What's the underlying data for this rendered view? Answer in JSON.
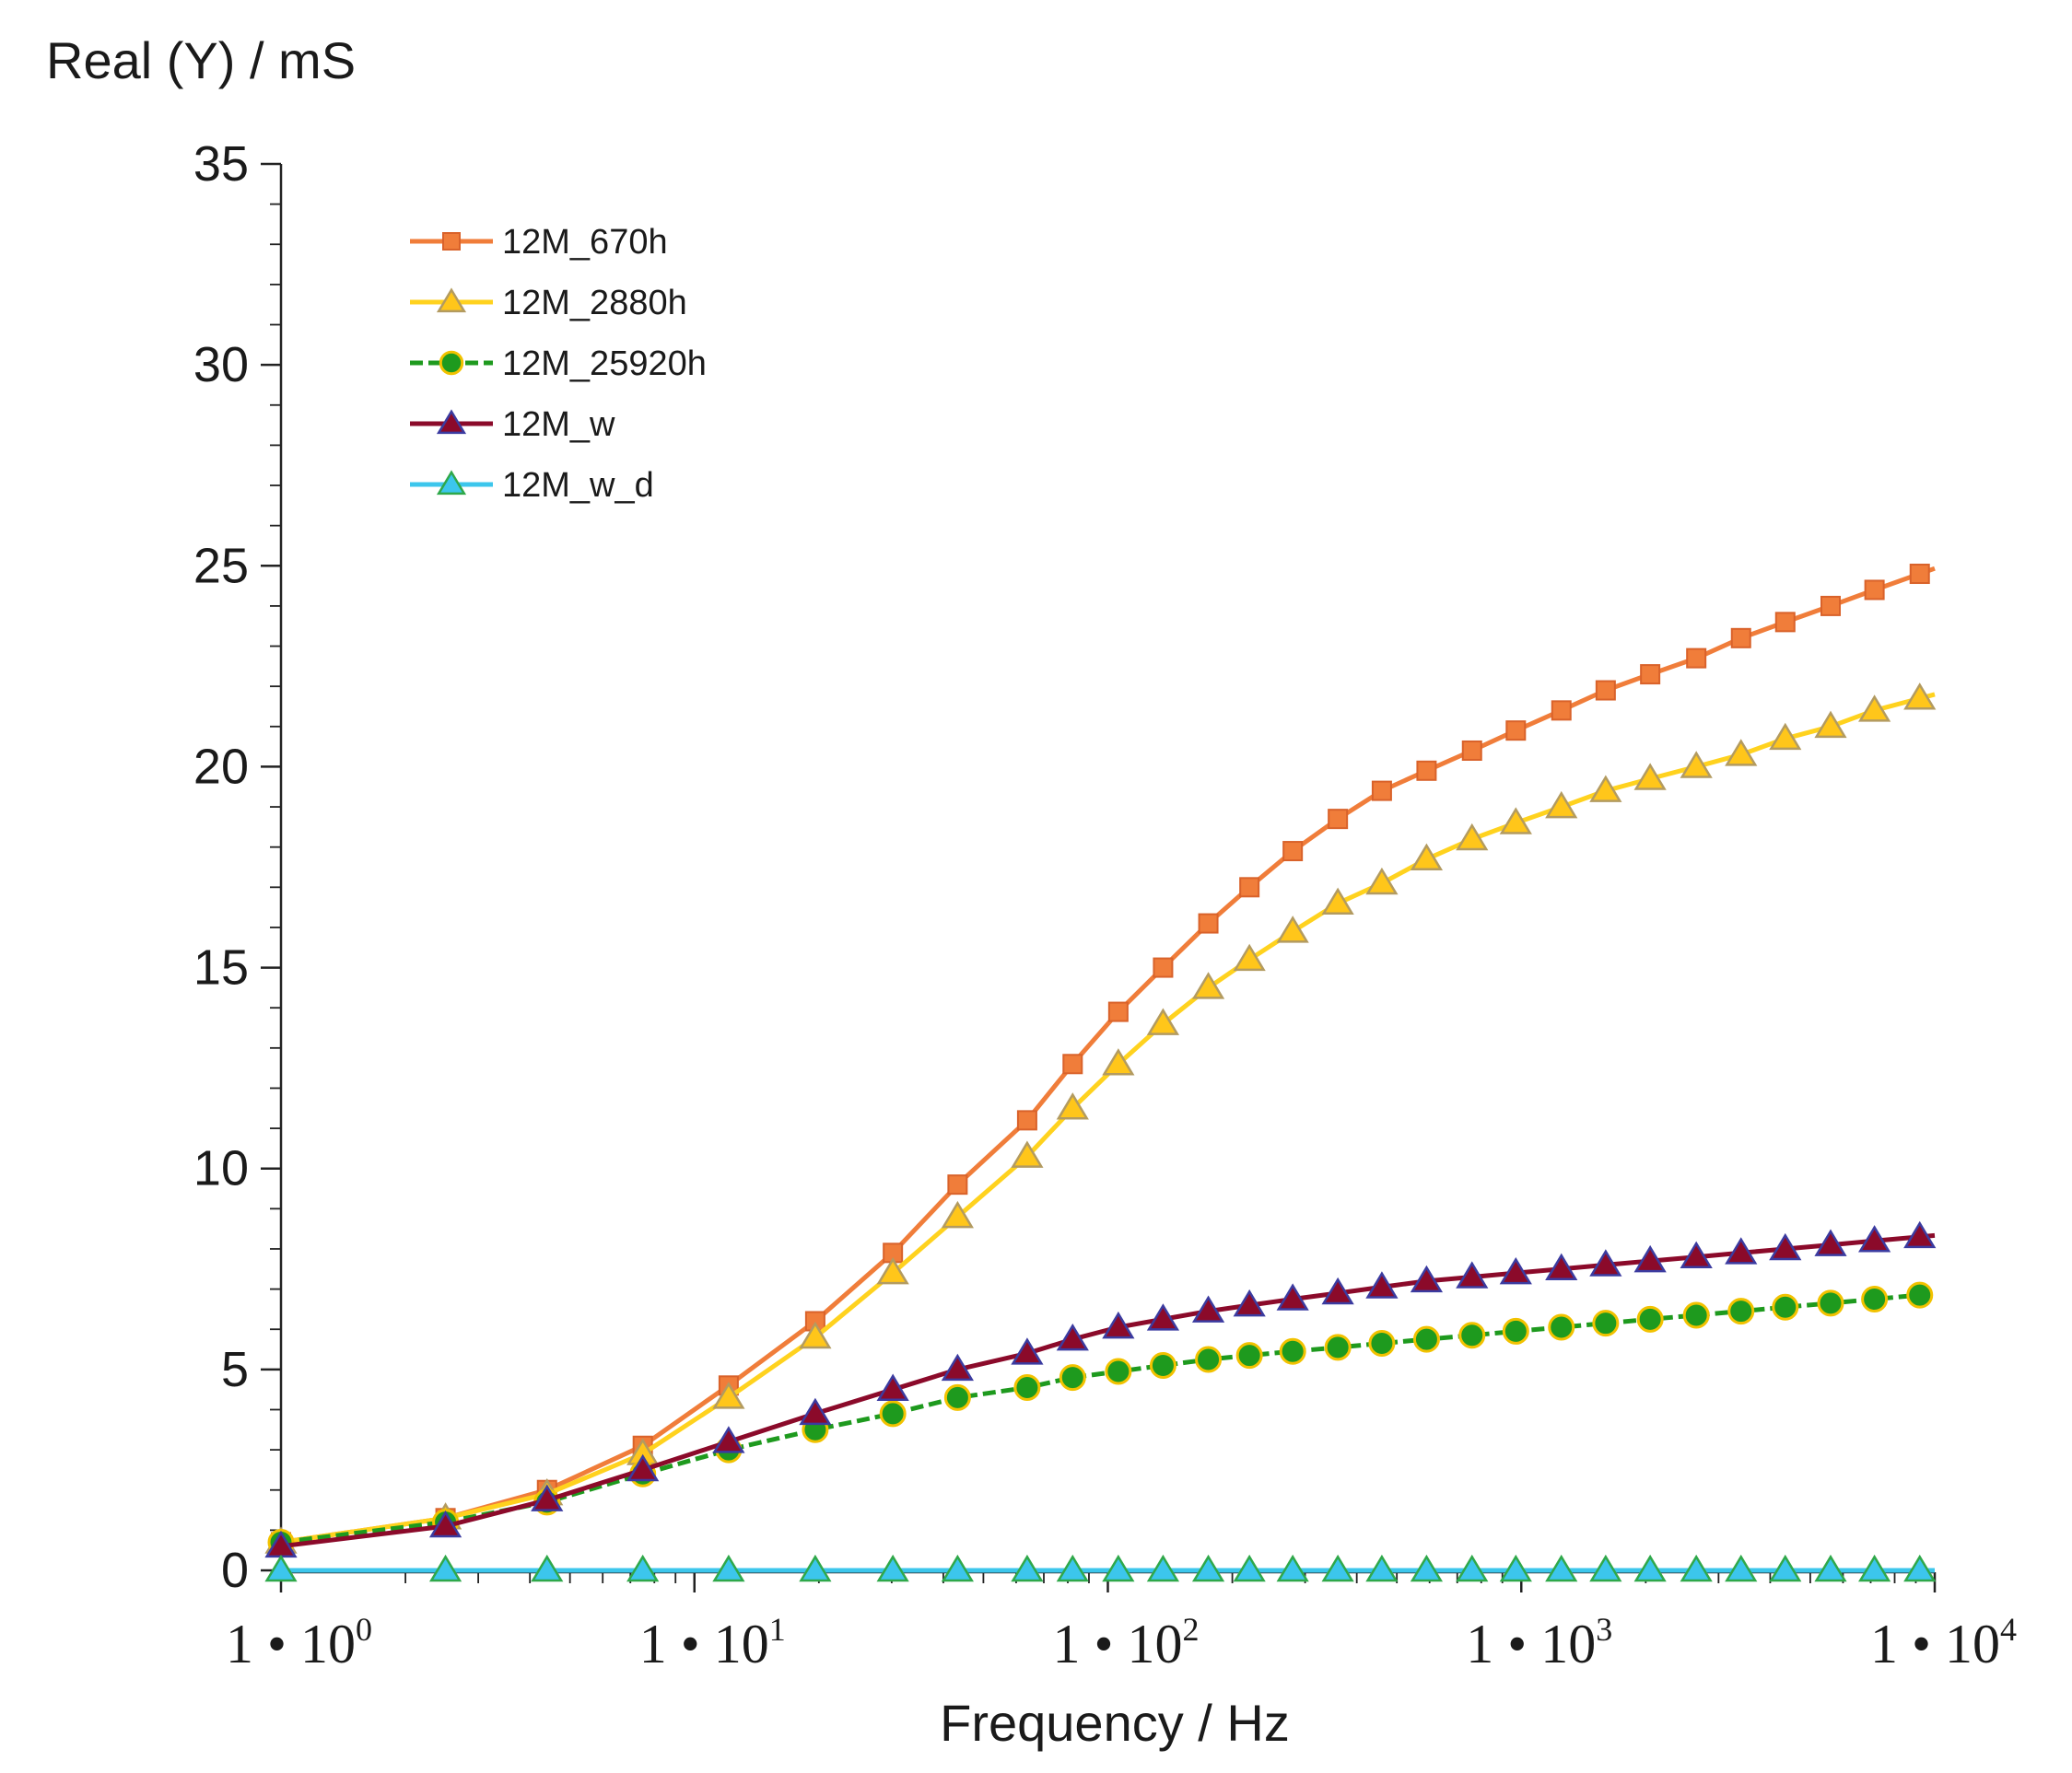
{
  "chart_data": {
    "type": "line",
    "title": "",
    "ylabel": "Real (Y) / mS",
    "xlabel": "Frequency / Hz",
    "xscale": "log",
    "xlim": [
      1,
      10000
    ],
    "ylim": [
      0,
      35
    ],
    "yticks": [
      0,
      5,
      10,
      15,
      20,
      25,
      30,
      35
    ],
    "yticks_labels": [
      "0",
      "5",
      "10",
      "15",
      "20",
      "25",
      "30",
      "35"
    ],
    "xticks": [
      {
        "value": 1,
        "base": "1 • 10",
        "exp": "0"
      },
      {
        "value": 10,
        "base": "1 • 10",
        "exp": "1"
      },
      {
        "value": 100,
        "base": "1 • 10",
        "exp": "2"
      },
      {
        "value": 1000,
        "base": "1 • 10",
        "exp": "3"
      },
      {
        "value": 10000,
        "base": "1 • 10",
        "exp": "4"
      }
    ],
    "legend_position": "top-left",
    "x": [
      1,
      2.5,
      4.4,
      7.5,
      12.1,
      19.6,
      30.2,
      43.3,
      63.8,
      82.2,
      106,
      136,
      175,
      220,
      280,
      360,
      460,
      590,
      760,
      970,
      1250,
      1600,
      2050,
      2650,
      3400,
      4350,
      5600,
      7150,
      9200
    ],
    "series": [
      {
        "name": "12M_670h",
        "color": "#F07D3A",
        "marker": "square",
        "values": [
          0.7,
          1.3,
          2.0,
          3.1,
          4.6,
          6.2,
          7.9,
          9.6,
          11.2,
          12.6,
          13.9,
          15.0,
          16.1,
          17.0,
          17.9,
          18.7,
          19.4,
          19.9,
          20.4,
          20.9,
          21.4,
          21.9,
          22.3,
          22.7,
          23.2,
          23.6,
          24.0,
          24.4,
          24.8
        ]
      },
      {
        "name": "12M_2880h",
        "color": "#FFD21E",
        "marker": "triangle",
        "values": [
          0.7,
          1.3,
          1.9,
          2.9,
          4.3,
          5.8,
          7.4,
          8.8,
          10.3,
          11.5,
          12.6,
          13.6,
          14.5,
          15.2,
          15.9,
          16.6,
          17.1,
          17.7,
          18.2,
          18.6,
          19.0,
          19.4,
          19.7,
          20.0,
          20.3,
          20.7,
          21.0,
          21.4,
          21.7
        ]
      },
      {
        "name": "12M_25920h",
        "color": "#1E9A1E",
        "marker": "circle",
        "values": [
          0.7,
          1.2,
          1.7,
          2.4,
          3.0,
          3.5,
          3.9,
          4.3,
          4.55,
          4.8,
          4.95,
          5.1,
          5.25,
          5.35,
          5.45,
          5.55,
          5.65,
          5.75,
          5.85,
          5.95,
          6.05,
          6.15,
          6.25,
          6.35,
          6.45,
          6.55,
          6.65,
          6.75,
          6.85
        ]
      },
      {
        "name": "12M_w",
        "color": "#8B0A2A",
        "marker": "triangle",
        "values": [
          0.6,
          1.1,
          1.75,
          2.5,
          3.2,
          3.9,
          4.5,
          5.0,
          5.4,
          5.75,
          6.05,
          6.25,
          6.45,
          6.6,
          6.75,
          6.9,
          7.05,
          7.2,
          7.3,
          7.4,
          7.5,
          7.6,
          7.7,
          7.8,
          7.9,
          8.0,
          8.1,
          8.2,
          8.3
        ]
      },
      {
        "name": "12M_w_d",
        "color": "#3CC6EC",
        "marker": "triangle",
        "values": [
          0,
          0,
          0,
          0,
          0,
          0,
          0,
          0,
          0,
          0,
          0,
          0,
          0,
          0,
          0,
          0,
          0,
          0,
          0,
          0,
          0,
          0,
          0,
          0,
          0,
          0,
          0,
          0,
          0
        ]
      }
    ]
  }
}
